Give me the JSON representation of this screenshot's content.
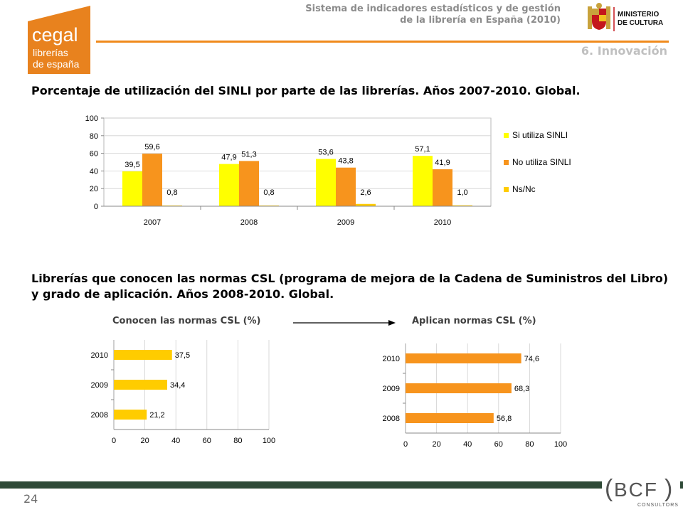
{
  "logo": {
    "line1": "cegal",
    "line2": "librerías",
    "line3": "de españa",
    "color": "#e8821e"
  },
  "header": {
    "line1": "Sistema de indicadores estadísticos y de gestión",
    "line2": "de la librería en España (2010)",
    "ministry_line1": "MINISTERIO",
    "ministry_line2": "DE CULTURA",
    "section": "6. Innovación",
    "accent": "#f08a1c"
  },
  "chart1_title": "Porcentaje de utilización del SINLI por parte de las librerías. Años 2007-2010. Global.",
  "chart2_title": "Librerías que conocen las normas CSL (programa de mejora de la Cadena de Suministros del Libro) y grado de aplicación. Años 2008-2010. Global.",
  "sub_left": "Conocen las normas CSL (%)",
  "sub_right": "Aplican normas CSL (%)",
  "chart_data": [
    {
      "type": "bar",
      "categories": [
        "2007",
        "2008",
        "2009",
        "2010"
      ],
      "series": [
        {
          "name": "Si utiliza SINLI",
          "values": [
            39.5,
            47.9,
            53.6,
            57.1
          ],
          "labels": [
            "39,5",
            "47,9",
            "53,6",
            "57,1"
          ],
          "color": "#ffff00"
        },
        {
          "name": "No utiliza SINLI",
          "values": [
            59.6,
            51.3,
            43.8,
            41.9
          ],
          "labels": [
            "59,6",
            "51,3",
            "43,8",
            "41,9"
          ],
          "color": "#f7941d"
        },
        {
          "name": "Ns/Nc",
          "values": [
            0.8,
            0.8,
            2.6,
            1.0
          ],
          "labels": [
            "0,8",
            "0,8",
            "2,6",
            "1,0"
          ],
          "color": "#ffcc00"
        }
      ],
      "ylim": [
        0,
        100
      ],
      "yticks": [
        "0",
        "20",
        "40",
        "60",
        "80",
        "100"
      ],
      "legend": "right",
      "grid": true
    },
    {
      "type": "bar",
      "orientation": "horizontal",
      "categories": [
        "2010",
        "2009",
        "2008"
      ],
      "values": [
        37.5,
        34.4,
        21.2
      ],
      "labels": [
        "37,5",
        "34,4",
        "21,2"
      ],
      "color": "#ffcc00",
      "xlim": [
        0,
        100
      ],
      "xticks": [
        "0",
        "20",
        "40",
        "60",
        "80",
        "100"
      ],
      "grid": true
    },
    {
      "type": "bar",
      "orientation": "horizontal",
      "categories": [
        "2010",
        "2009",
        "2008"
      ],
      "values": [
        74.6,
        68.3,
        56.8
      ],
      "labels": [
        "74,6",
        "68,3",
        "56,8"
      ],
      "color": "#f7941d",
      "xlim": [
        0,
        100
      ],
      "xticks": [
        "0",
        "20",
        "40",
        "60",
        "80",
        "100"
      ],
      "grid": true
    }
  ],
  "footer": {
    "page_number": "24",
    "bcf_logo": "BCF",
    "bcf_sub": "CONSULTORS",
    "bar_color": "#2f4a37"
  }
}
